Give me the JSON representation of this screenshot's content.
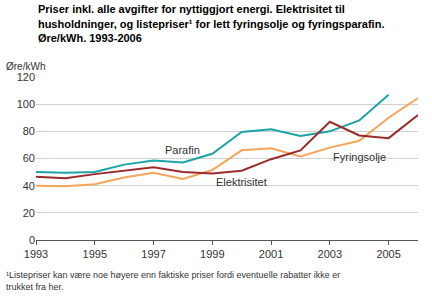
{
  "chart_data": {
    "type": "line",
    "title": "Priser inkl. alle avgifter for nyttiggjort energi. Elektrisitet til\nhusholdninger, og listepriser¹ for lett fyringsolje og fyringsparafin.\nØre/kWh. 1993-2006",
    "ylabel": "Øre/kWh",
    "footnote": "¹Listepriser kan være noe høyere enn faktiske priser fordi eventuelle rabatter ikke er\ntrukket fra her.",
    "x": [
      1993,
      1994,
      1995,
      1996,
      1997,
      1998,
      1999,
      2000,
      2001,
      2002,
      2003,
      2004,
      2005,
      2006
    ],
    "series": [
      {
        "name": "Parafin",
        "color": "#1ba3a8",
        "values": [
          50,
          49.5,
          50,
          55.5,
          58.5,
          57,
          63.5,
          79.5,
          81.5,
          76.5,
          80,
          88,
          107,
          null
        ]
      },
      {
        "name": "Fyringsolje",
        "color": "#f5a55a",
        "values": [
          40,
          39.5,
          41,
          46,
          49.5,
          45,
          51.5,
          66,
          67.5,
          61.5,
          68,
          73,
          90,
          104.5
        ]
      },
      {
        "name": "Elektrisitet",
        "color": "#9b2a2a",
        "values": [
          46.5,
          45.5,
          48.5,
          51,
          53.5,
          50,
          49,
          51,
          59.5,
          66,
          87,
          77,
          75,
          92
        ]
      }
    ],
    "annotations": [
      {
        "text": "Parafin",
        "x": 1998,
        "y": 66
      },
      {
        "text": "Fyringsolje",
        "x": 2004,
        "y": 61
      },
      {
        "text": "Elektrisitet",
        "x": 2000,
        "y": 43
      }
    ],
    "xlim": [
      1993,
      2006
    ],
    "xticks": [
      1993,
      1995,
      1997,
      1999,
      2001,
      2003,
      2005
    ],
    "ylim": [
      0,
      120
    ],
    "yticks": [
      0,
      20,
      40,
      60,
      80,
      100,
      120
    ],
    "grid": true
  }
}
